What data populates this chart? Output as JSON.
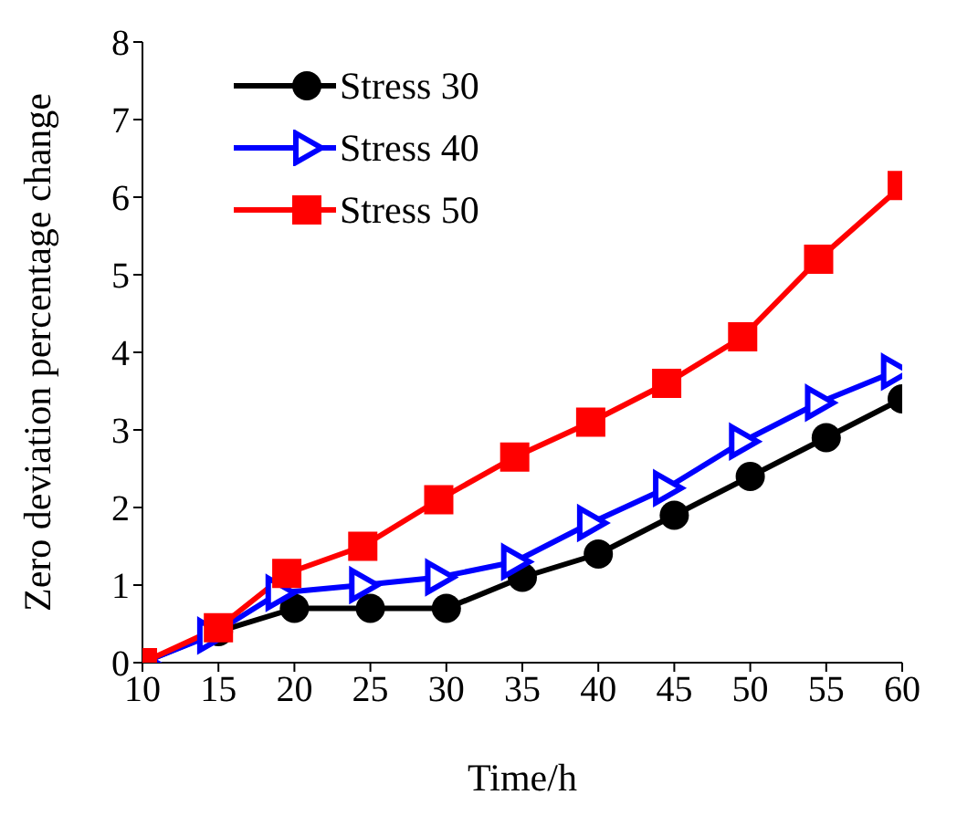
{
  "chart_data": {
    "type": "line",
    "xlabel": "Time/h",
    "ylabel": "Zero deviation percentage change",
    "xlim": [
      10,
      60
    ],
    "xticks": [
      10,
      15,
      20,
      25,
      30,
      35,
      40,
      45,
      50,
      55,
      60
    ],
    "ylim": [
      0,
      8
    ],
    "yticks": [
      0,
      1,
      2,
      3,
      4,
      5,
      6,
      7,
      8
    ],
    "grid": false,
    "legend": "top left",
    "line_style": "solid",
    "series": [
      {
        "name": "Stress 30",
        "color": "#000000",
        "marker": "circle",
        "x": [
          10,
          15,
          20,
          25,
          30,
          35,
          40,
          45,
          50,
          55,
          60
        ],
        "values": [
          0,
          0.4,
          0.7,
          0.7,
          0.7,
          1.1,
          1.4,
          1.9,
          2.4,
          2.9,
          3.4
        ]
      },
      {
        "name": "Stress 40",
        "color": "#0000ff",
        "marker": "triangle",
        "x": [
          10,
          14.5,
          19,
          24.5,
          29.5,
          34.5,
          39.5,
          44.5,
          49.5,
          54.5,
          59.5
        ],
        "values": [
          0,
          0.35,
          0.9,
          1.0,
          1.1,
          1.3,
          1.8,
          2.25,
          2.85,
          3.35,
          3.75
        ]
      },
      {
        "name": "Stress 50",
        "color": "#ff0000",
        "marker": "square",
        "x": [
          10,
          15,
          19.5,
          24.5,
          29.5,
          34.5,
          39.5,
          44.5,
          49.5,
          54.5,
          60
        ],
        "values": [
          0,
          0.45,
          1.15,
          1.5,
          2.1,
          2.65,
          3.1,
          3.6,
          4.2,
          5.2,
          6.15
        ]
      }
    ]
  }
}
